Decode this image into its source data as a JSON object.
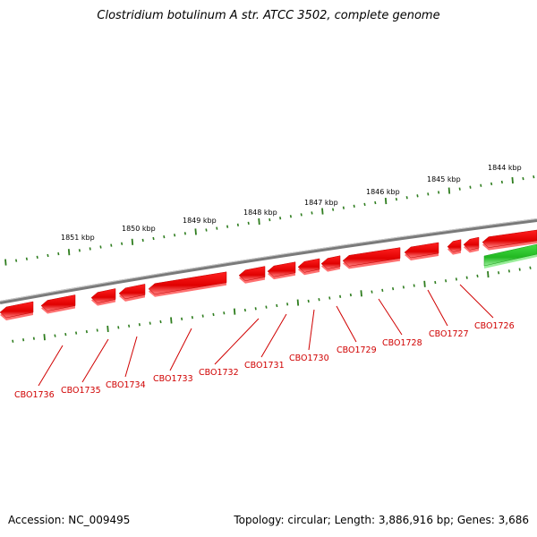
{
  "title": "Clostridium botulinum A str. ATCC 3502, complete genome",
  "footer": {
    "accession": "Accession: NC_009495",
    "summary": "Topology: circular; Length: 3,886,916 bp; Genes: 3,686"
  },
  "colors": {
    "backbone": "#8a8a8a",
    "reverse_gene": "#e60000",
    "forward_gene": "#33cc33",
    "label": "#d00000",
    "tick": "#2e7d1e"
  },
  "kbp_ticks": [
    "1851 kbp",
    "1850 kbp",
    "1849 kbp",
    "1848 kbp",
    "1847 kbp",
    "1846 kbp",
    "1845 kbp",
    "1844 kbp"
  ],
  "genes": [
    "CBO1736",
    "CBO1735",
    "CBO1734",
    "CBO1733",
    "CBO1732",
    "CBO1731",
    "CBO1730",
    "CBO1729",
    "CBO1728",
    "CBO1727",
    "CBO1726"
  ]
}
